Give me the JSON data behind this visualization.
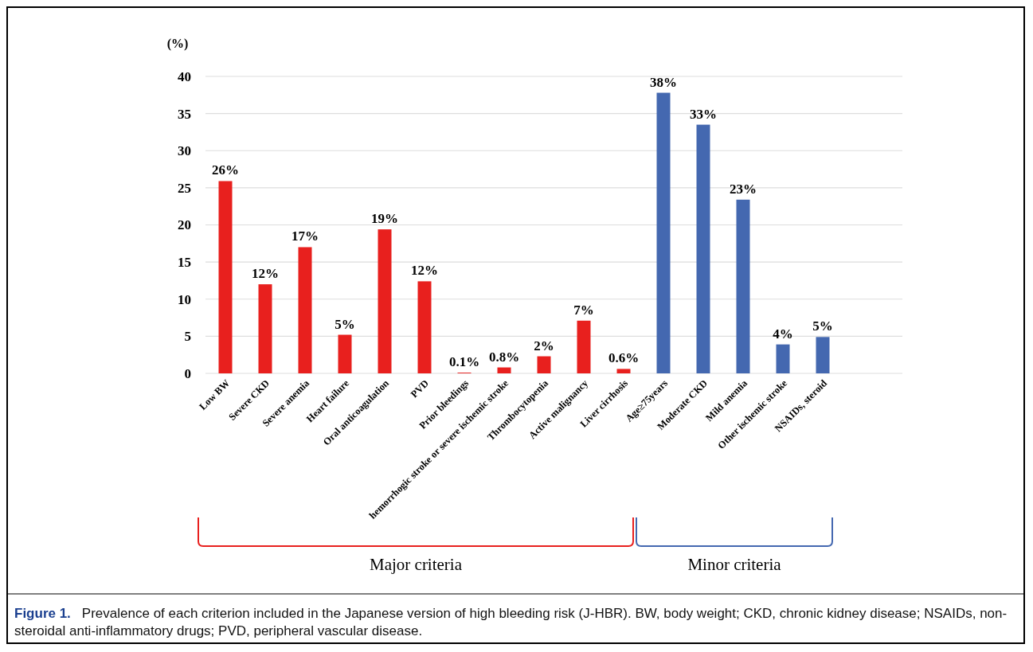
{
  "chart_data": {
    "type": "bar",
    "ylabel": "(%)",
    "categories": [
      "Low BW",
      "Severe CKD",
      "Severe anemia",
      "Heart failure",
      "Oral anticoagulation",
      "PVD",
      "Prior bleedings",
      "hemorrhogic stroke or severe ischemic stroke",
      "Thrombocytopenia",
      "Active malignancy",
      "Liver cirrhosis",
      "Age≥75years",
      "Moderate CKD",
      "Mild anemia",
      "Other ischemic stroke",
      "NSAIDs, steroid"
    ],
    "values": [
      25.9,
      12.0,
      17.0,
      5.2,
      19.4,
      12.4,
      0.1,
      0.8,
      2.3,
      7.1,
      0.6,
      37.8,
      33.5,
      23.4,
      3.9,
      4.9
    ],
    "colors": [
      "#e8201e",
      "#e8201e",
      "#e8201e",
      "#e8201e",
      "#e8201e",
      "#e8201e",
      "#e8201e",
      "#e8201e",
      "#e8201e",
      "#e8201e",
      "#e8201e",
      "#4468b0",
      "#4468b0",
      "#4468b0",
      "#4468b0",
      "#4468b0"
    ],
    "value_labels": [
      "26%",
      "12%",
      "17%",
      "5%",
      "19%",
      "12%",
      "0.1%",
      "0.8%",
      "2%",
      "7%",
      "0.6%",
      "38%",
      "33%",
      "23%",
      "4%",
      "5%"
    ],
    "ylim": [
      0,
      40
    ],
    "yticks": [
      0,
      5,
      10,
      15,
      20,
      25,
      30,
      35,
      40
    ],
    "grid": "y",
    "annotations": [
      "Major criteria",
      "Minor criteria",
      "Figure 1.",
      "Prevalence of each criterion included in the Japanese version of high bleeding risk (J-HBR). BW, body weight; CKD, chronic kidney disease; NSAIDs, non-steroidal anti-inflammatory drugs; PVD, peripheral vascular disease."
    ]
  }
}
